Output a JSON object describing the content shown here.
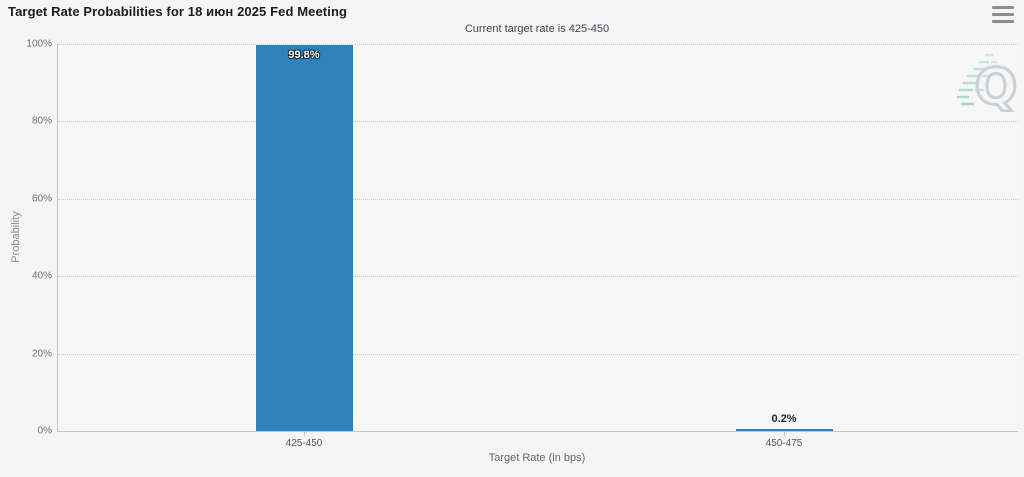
{
  "toolbar": {
    "menu_icon": "hamburger-menu"
  },
  "chart_data": {
    "type": "bar",
    "title": "Target Rate Probabilities for 18 июн 2025 Fed Meeting",
    "subtitle": "Current target rate is 425-450",
    "categories": [
      "425-450",
      "450-475"
    ],
    "values": [
      99.8,
      0.2
    ],
    "value_labels": [
      "99.8%",
      "0.2%"
    ],
    "xlabel": "Target Rate (in bps)",
    "ylabel": "Probability",
    "ylim": [
      0,
      100
    ],
    "yticks": [
      "0%",
      "20%",
      "40%",
      "60%",
      "80%",
      "100%"
    ],
    "grid": "horizontal-dotted",
    "legend": "none",
    "bar_color": "#2e81bb",
    "inside_label_threshold": 10
  },
  "watermark": {
    "letter": "Q",
    "letter_color": "#c6cbd0",
    "accent_color": "#93d2c5"
  }
}
